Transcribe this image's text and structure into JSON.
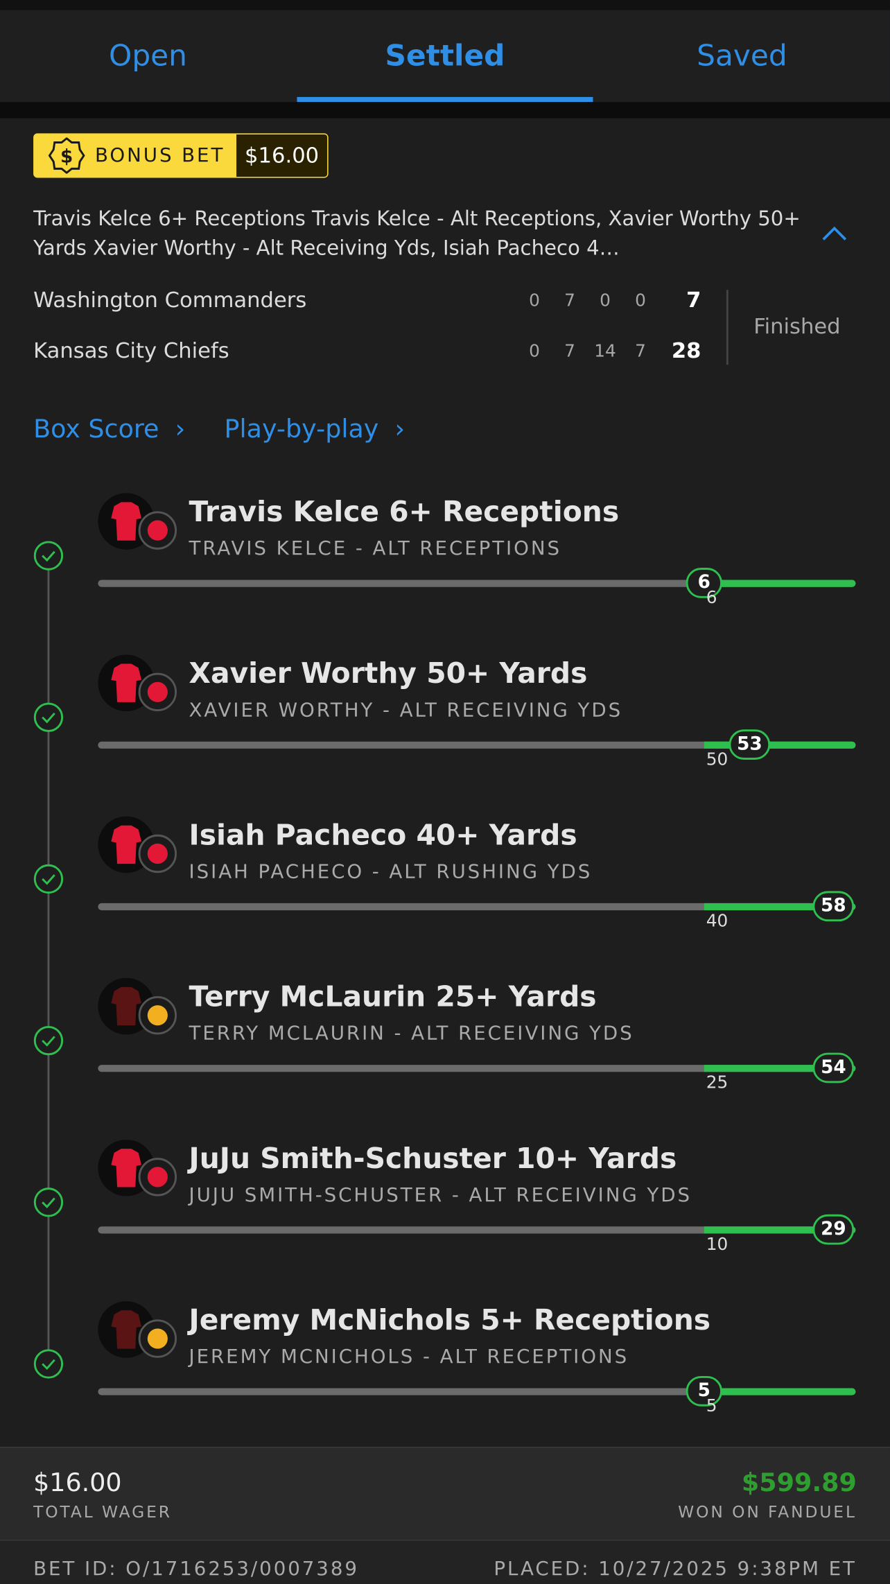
{
  "tabs": [
    "Open",
    "Settled",
    "Saved"
  ],
  "active_tab": 1,
  "bonus": {
    "label": "BONUS BET",
    "amount": "$16.00"
  },
  "description": "Travis Kelce 6+ Receptions Travis Kelce - Alt Receptions, Xavier Worthy 50+ Yards Xavier Worthy - Alt Receiving Yds, Isiah Pacheco 4…",
  "game": {
    "teams": [
      {
        "name": "Washington Commanders",
        "quarters": [
          0,
          7,
          0,
          0
        ],
        "total": 7
      },
      {
        "name": "Kansas City Chiefs",
        "quarters": [
          0,
          7,
          14,
          7
        ],
        "total": 28
      }
    ],
    "status": "Finished"
  },
  "links": [
    "Box Score",
    "Play-by-play"
  ],
  "legs": [
    {
      "title": "Travis Kelce 6+ Receptions",
      "subtitle": "TRAVIS KELCE - ALT RECEPTIONS",
      "threshold": 6,
      "actual": 6,
      "color": "#e31837"
    },
    {
      "title": "Xavier Worthy 50+ Yards",
      "subtitle": "XAVIER WORTHY - ALT RECEIVING YDS",
      "threshold": 50,
      "actual": 53,
      "color": "#e31837"
    },
    {
      "title": "Isiah Pacheco 40+ Yards",
      "subtitle": "ISIAH PACHECO - ALT RUSHING YDS",
      "threshold": 40,
      "actual": 58,
      "color": "#e31837"
    },
    {
      "title": "Terry McLaurin 25+ Yards",
      "subtitle": "TERRY MCLAURIN - ALT RECEIVING YDS",
      "threshold": 25,
      "actual": 54,
      "color": "#5a1414"
    },
    {
      "title": "JuJu Smith-Schuster 10+ Yards",
      "subtitle": "JUJU SMITH-SCHUSTER - ALT RECEIVING YDS",
      "threshold": 10,
      "actual": 29,
      "color": "#e31837"
    },
    {
      "title": "Jeremy McNichols 5+ Receptions",
      "subtitle": "JEREMY MCNICHOLS - ALT RECEPTIONS",
      "threshold": 5,
      "actual": 5,
      "color": "#5a1414"
    }
  ],
  "footer": {
    "wager": "$16.00",
    "wager_label": "TOTAL WAGER",
    "won": "$599.89",
    "won_label": "WON ON FANDUEL",
    "bet_id": "BET ID: O/1716253/0007389",
    "placed": "PLACED: 10/27/2025 9:38PM ET"
  }
}
